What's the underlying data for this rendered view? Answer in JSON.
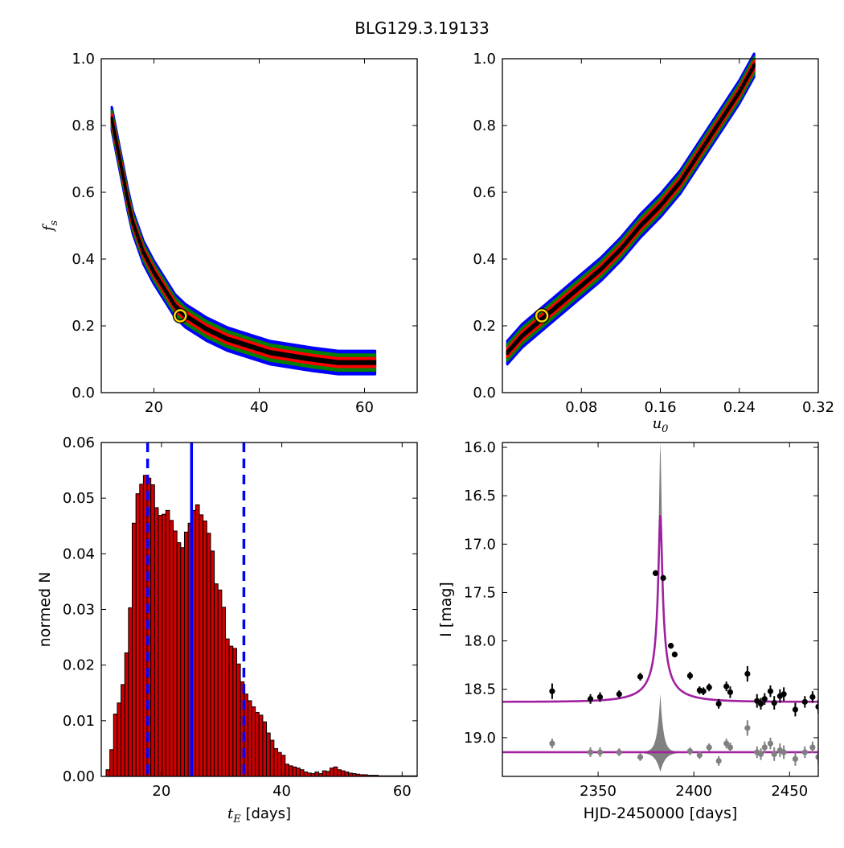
{
  "figure": {
    "title": "BLG129.3.19133"
  },
  "colors": {
    "outer": "#0000ff",
    "mid": "#008000",
    "inner": "#ff0000",
    "core": "#000000",
    "hist_fill": "#cc0000",
    "median_line": "#0000ff",
    "model": "#a020a0",
    "residual": "#808080",
    "best_fit_ring": "#ffd700"
  },
  "chart_data": [
    {
      "type": "heatmap",
      "panel": "top-left",
      "xlabel": "",
      "ylabel": "f_s",
      "xlim": [
        10,
        70
      ],
      "ylim": [
        0.0,
        1.0
      ],
      "xticks": [
        "20",
        "40",
        "60"
      ],
      "yticks": [
        "0.0",
        "0.2",
        "0.4",
        "0.6",
        "0.8",
        "1.0"
      ],
      "best_fit": {
        "x": 25,
        "y": 0.23
      },
      "contour_band": {
        "description": "confidence levels along a hyperbolic ridge",
        "ridge_x": [
          12,
          13,
          14,
          15,
          16,
          18,
          20,
          22,
          24,
          26,
          28,
          30,
          34,
          38,
          42,
          46,
          50,
          55,
          60,
          62
        ],
        "ridge_y": [
          0.82,
          0.74,
          0.66,
          0.58,
          0.51,
          0.42,
          0.36,
          0.31,
          0.26,
          0.23,
          0.21,
          0.19,
          0.16,
          0.14,
          0.12,
          0.11,
          0.1,
          0.09,
          0.09,
          0.09
        ],
        "levels": [
          "outer",
          "mid",
          "inner",
          "core"
        ]
      }
    },
    {
      "type": "heatmap",
      "panel": "top-right",
      "xlabel": "u_0",
      "ylabel": "",
      "xlim": [
        0.0,
        0.32
      ],
      "ylim": [
        0.0,
        1.0
      ],
      "xticks": [
        "0.08",
        "0.16",
        "0.24",
        "0.32"
      ],
      "yticks": [
        "0.0",
        "0.2",
        "0.4",
        "0.6",
        "0.8",
        "1.0"
      ],
      "best_fit": {
        "x": 0.04,
        "y": 0.23
      },
      "contour_band": {
        "description": "confidence levels along a near-linear ridge",
        "ridge_x": [
          0.005,
          0.02,
          0.04,
          0.06,
          0.08,
          0.1,
          0.12,
          0.14,
          0.16,
          0.18,
          0.2,
          0.22,
          0.24,
          0.255
        ],
        "ridge_y": [
          0.12,
          0.17,
          0.22,
          0.27,
          0.32,
          0.37,
          0.43,
          0.5,
          0.56,
          0.63,
          0.72,
          0.81,
          0.9,
          0.98
        ],
        "levels": [
          "outer",
          "mid",
          "inner",
          "core"
        ]
      }
    },
    {
      "type": "bar",
      "panel": "bottom-left",
      "xlabel": "t_E [days]",
      "ylabel": "normed N",
      "xlim": [
        10,
        62.5
      ],
      "ylim": [
        0.0,
        0.06
      ],
      "xticks": [
        "20",
        "40",
        "60"
      ],
      "yticks": [
        "0.00",
        "0.01",
        "0.02",
        "0.03",
        "0.04",
        "0.05",
        "0.06"
      ],
      "bin_start": 10.8,
      "bin_width": 0.62,
      "values": [
        0.0012,
        0.0048,
        0.0112,
        0.0132,
        0.0165,
        0.0222,
        0.0303,
        0.0455,
        0.0508,
        0.0525,
        0.0541,
        0.0536,
        0.0524,
        0.0483,
        0.0469,
        0.0471,
        0.0478,
        0.046,
        0.0441,
        0.042,
        0.0411,
        0.0439,
        0.0455,
        0.0478,
        0.0488,
        0.047,
        0.0459,
        0.0437,
        0.0405,
        0.0346,
        0.0335,
        0.0304,
        0.0247,
        0.0234,
        0.023,
        0.0202,
        0.017,
        0.0148,
        0.0136,
        0.0125,
        0.0115,
        0.011,
        0.0098,
        0.0078,
        0.0065,
        0.005,
        0.0043,
        0.0038,
        0.0022,
        0.0019,
        0.0017,
        0.0015,
        0.0012,
        0.0008,
        0.0006,
        0.0005,
        0.0008,
        0.0005,
        0.001,
        0.0009,
        0.0015,
        0.0017,
        0.0012,
        0.001,
        0.0008,
        0.0006,
        0.0005,
        0.0004,
        0.0003,
        0.0003,
        0.0002,
        0.0002,
        0.0002,
        0.0001,
        0.0001,
        0.0001,
        0.0001,
        0.0001,
        0.0001,
        0.0001,
        0.0001,
        0.0001,
        0.0001,
        0.0001
      ],
      "vlines": [
        {
          "x": 17.7,
          "style": "dashed"
        },
        {
          "x": 25.0,
          "style": "solid"
        },
        {
          "x": 33.7,
          "style": "dashed"
        }
      ]
    },
    {
      "type": "line",
      "panel": "bottom-right",
      "xlabel": "HJD-2450000 [days]",
      "ylabel": "I [mag]",
      "xlim": [
        2300,
        2465
      ],
      "ylim": [
        19.4,
        15.95
      ],
      "xticks": [
        "2350",
        "2400",
        "2450"
      ],
      "yticks": [
        "16.0",
        "16.5",
        "17.0",
        "17.5",
        "18.0",
        "18.5",
        "19.0"
      ],
      "model": {
        "peak_t": 2382.5,
        "baseline": 18.63,
        "peak_mag": 16.7,
        "t_E": 25,
        "u0": 0.04
      },
      "model_band_peak": 15.95,
      "residual_baseline": 19.15,
      "photometry": [
        {
          "t": 2326,
          "mag": 18.52,
          "err": 0.08
        },
        {
          "t": 2346,
          "mag": 18.6,
          "err": 0.05
        },
        {
          "t": 2351,
          "mag": 18.58,
          "err": 0.05
        },
        {
          "t": 2361,
          "mag": 18.55,
          "err": 0.04
        },
        {
          "t": 2372,
          "mag": 18.37,
          "err": 0.04
        },
        {
          "t": 2380,
          "mag": 17.3,
          "err": 0.03
        },
        {
          "t": 2384,
          "mag": 17.35,
          "err": 0.03
        },
        {
          "t": 2388,
          "mag": 18.05,
          "err": 0.03
        },
        {
          "t": 2390,
          "mag": 18.14,
          "err": 0.03
        },
        {
          "t": 2398,
          "mag": 18.36,
          "err": 0.04
        },
        {
          "t": 2403,
          "mag": 18.51,
          "err": 0.04
        },
        {
          "t": 2405,
          "mag": 18.52,
          "err": 0.04
        },
        {
          "t": 2408,
          "mag": 18.48,
          "err": 0.04
        },
        {
          "t": 2413,
          "mag": 18.65,
          "err": 0.05
        },
        {
          "t": 2417,
          "mag": 18.47,
          "err": 0.05
        },
        {
          "t": 2419,
          "mag": 18.53,
          "err": 0.06
        },
        {
          "t": 2428,
          "mag": 18.34,
          "err": 0.08
        },
        {
          "t": 2433,
          "mag": 18.62,
          "err": 0.07
        },
        {
          "t": 2435,
          "mag": 18.65,
          "err": 0.06
        },
        {
          "t": 2437,
          "mag": 18.6,
          "err": 0.06
        },
        {
          "t": 2440,
          "mag": 18.52,
          "err": 0.06
        },
        {
          "t": 2442,
          "mag": 18.64,
          "err": 0.07
        },
        {
          "t": 2445,
          "mag": 18.57,
          "err": 0.07
        },
        {
          "t": 2447,
          "mag": 18.55,
          "err": 0.07
        },
        {
          "t": 2453,
          "mag": 18.71,
          "err": 0.07
        },
        {
          "t": 2458,
          "mag": 18.63,
          "err": 0.06
        },
        {
          "t": 2462,
          "mag": 18.58,
          "err": 0.06
        },
        {
          "t": 2465,
          "mag": 18.68,
          "err": 0.07
        }
      ],
      "residuals": [
        {
          "t": 2326,
          "mag": 19.06,
          "err": 0.05
        },
        {
          "t": 2346,
          "mag": 19.15,
          "err": 0.05
        },
        {
          "t": 2351,
          "mag": 19.15,
          "err": 0.05
        },
        {
          "t": 2361,
          "mag": 19.15,
          "err": 0.04
        },
        {
          "t": 2372,
          "mag": 19.2,
          "err": 0.04
        },
        {
          "t": 2398,
          "mag": 19.14,
          "err": 0.04
        },
        {
          "t": 2403,
          "mag": 19.18,
          "err": 0.04
        },
        {
          "t": 2408,
          "mag": 19.1,
          "err": 0.04
        },
        {
          "t": 2413,
          "mag": 19.24,
          "err": 0.05
        },
        {
          "t": 2417,
          "mag": 19.06,
          "err": 0.05
        },
        {
          "t": 2419,
          "mag": 19.1,
          "err": 0.05
        },
        {
          "t": 2428,
          "mag": 18.9,
          "err": 0.08
        },
        {
          "t": 2433,
          "mag": 19.15,
          "err": 0.06
        },
        {
          "t": 2435,
          "mag": 19.17,
          "err": 0.06
        },
        {
          "t": 2437,
          "mag": 19.1,
          "err": 0.06
        },
        {
          "t": 2440,
          "mag": 19.06,
          "err": 0.06
        },
        {
          "t": 2442,
          "mag": 19.17,
          "err": 0.07
        },
        {
          "t": 2445,
          "mag": 19.13,
          "err": 0.07
        },
        {
          "t": 2447,
          "mag": 19.15,
          "err": 0.07
        },
        {
          "t": 2453,
          "mag": 19.22,
          "err": 0.07
        },
        {
          "t": 2458,
          "mag": 19.15,
          "err": 0.06
        },
        {
          "t": 2462,
          "mag": 19.1,
          "err": 0.06
        },
        {
          "t": 2465,
          "mag": 19.2,
          "err": 0.07
        }
      ]
    }
  ]
}
